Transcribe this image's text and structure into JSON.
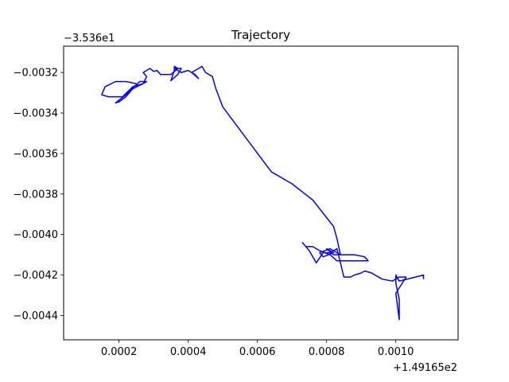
{
  "chart_data": {
    "type": "line",
    "title": "Trajectory",
    "xlabel": "",
    "ylabel": "",
    "x_offset_label": "+1.49165e2",
    "y_offset_label": "−3.536e1",
    "xlim": [
      4e-05,
      0.00118
    ],
    "ylim": [
      -0.00452,
      -0.00307
    ],
    "x_ticks": [
      0.0002,
      0.0004,
      0.0006,
      0.0008,
      0.001
    ],
    "x_tick_labels": [
      "0.0002",
      "0.0004",
      "0.0006",
      "0.0008",
      "0.0010"
    ],
    "y_ticks": [
      -0.0044,
      -0.0042,
      -0.004,
      -0.0038,
      -0.0036,
      -0.0034,
      -0.0032
    ],
    "y_tick_labels": [
      "−0.0044",
      "−0.0042",
      "−0.0040",
      "−0.0038",
      "−0.0036",
      "−0.0034",
      "−0.0032"
    ],
    "grid": false,
    "color": "#0000ff",
    "series": [
      {
        "x": [
          0.00025,
          0.00022,
          0.00019,
          0.00016,
          0.00015,
          0.00017,
          0.00021,
          0.00024,
          0.00027,
          0.00028,
          0.00026,
          0.00025,
          0.00024,
          0.00022,
          0.00019,
          0.0002,
          0.00022,
          0.00024,
          0.00027,
          0.00028,
          0.00027,
          0.00028,
          0.00029,
          0.0003,
          0.00031,
          0.00032,
          0.00033,
          0.00035,
          0.00037,
          0.00036,
          0.00036,
          0.00035,
          0.00037,
          0.00038,
          0.00036,
          0.00038,
          0.0004,
          0.00042,
          0.00043,
          0.00041,
          0.00043,
          0.00044,
          0.00045,
          0.00047,
          0.00048,
          0.0005,
          0.00064,
          0.0007,
          0.00076,
          0.00082,
          0.00083,
          0.00084,
          0.00082,
          0.0008,
          0.00082,
          0.00079,
          0.00078,
          0.00081,
          0.00084,
          0.00088,
          0.00091,
          0.00092,
          0.00086,
          0.00083,
          0.00081,
          0.00078,
          0.00076,
          0.00074,
          0.00073,
          0.00075,
          0.00077,
          0.00079,
          0.00081,
          0.00083,
          0.00085,
          0.00087,
          0.00088,
          0.0009,
          0.00091,
          0.00093,
          0.00096,
          0.00099,
          0.00101,
          0.00103,
          0.001,
          0.00101,
          0.00101,
          0.001,
          0.001,
          0.00101,
          0.00108,
          0.00108
        ],
        "y": [
          -0.003255,
          -0.003245,
          -0.003245,
          -0.00327,
          -0.00331,
          -0.00332,
          -0.00332,
          -0.00327,
          -0.003255,
          -0.003245,
          -0.003245,
          -0.00326,
          -0.003275,
          -0.00331,
          -0.00335,
          -0.003345,
          -0.00332,
          -0.00328,
          -0.003255,
          -0.00322,
          -0.0032,
          -0.00319,
          -0.00318,
          -0.003195,
          -0.00319,
          -0.00321,
          -0.00321,
          -0.00321,
          -0.00318,
          -0.00317,
          -0.00319,
          -0.00324,
          -0.00321,
          -0.00318,
          -0.00318,
          -0.0032,
          -0.00319,
          -0.00321,
          -0.00323,
          -0.0032,
          -0.00318,
          -0.00317,
          -0.0032,
          -0.00322,
          -0.00328,
          -0.00337,
          -0.00369,
          -0.00375,
          -0.00383,
          -0.00396,
          -0.00402,
          -0.0041,
          -0.0041,
          -0.00407,
          -0.00409,
          -0.00411,
          -0.00409,
          -0.00407,
          -0.0041,
          -0.0041,
          -0.00411,
          -0.00413,
          -0.00413,
          -0.00413,
          -0.0041,
          -0.00408,
          -0.00406,
          -0.00406,
          -0.00404,
          -0.00408,
          -0.00414,
          -0.00409,
          -0.00409,
          -0.00407,
          -0.00421,
          -0.00421,
          -0.0042,
          -0.00419,
          -0.00418,
          -0.00419,
          -0.00422,
          -0.00423,
          -0.00421,
          -0.00421,
          -0.00429,
          -0.00442,
          -0.00432,
          -0.00424,
          -0.0042,
          -0.00423,
          -0.0042,
          -0.00422
        ]
      }
    ]
  }
}
